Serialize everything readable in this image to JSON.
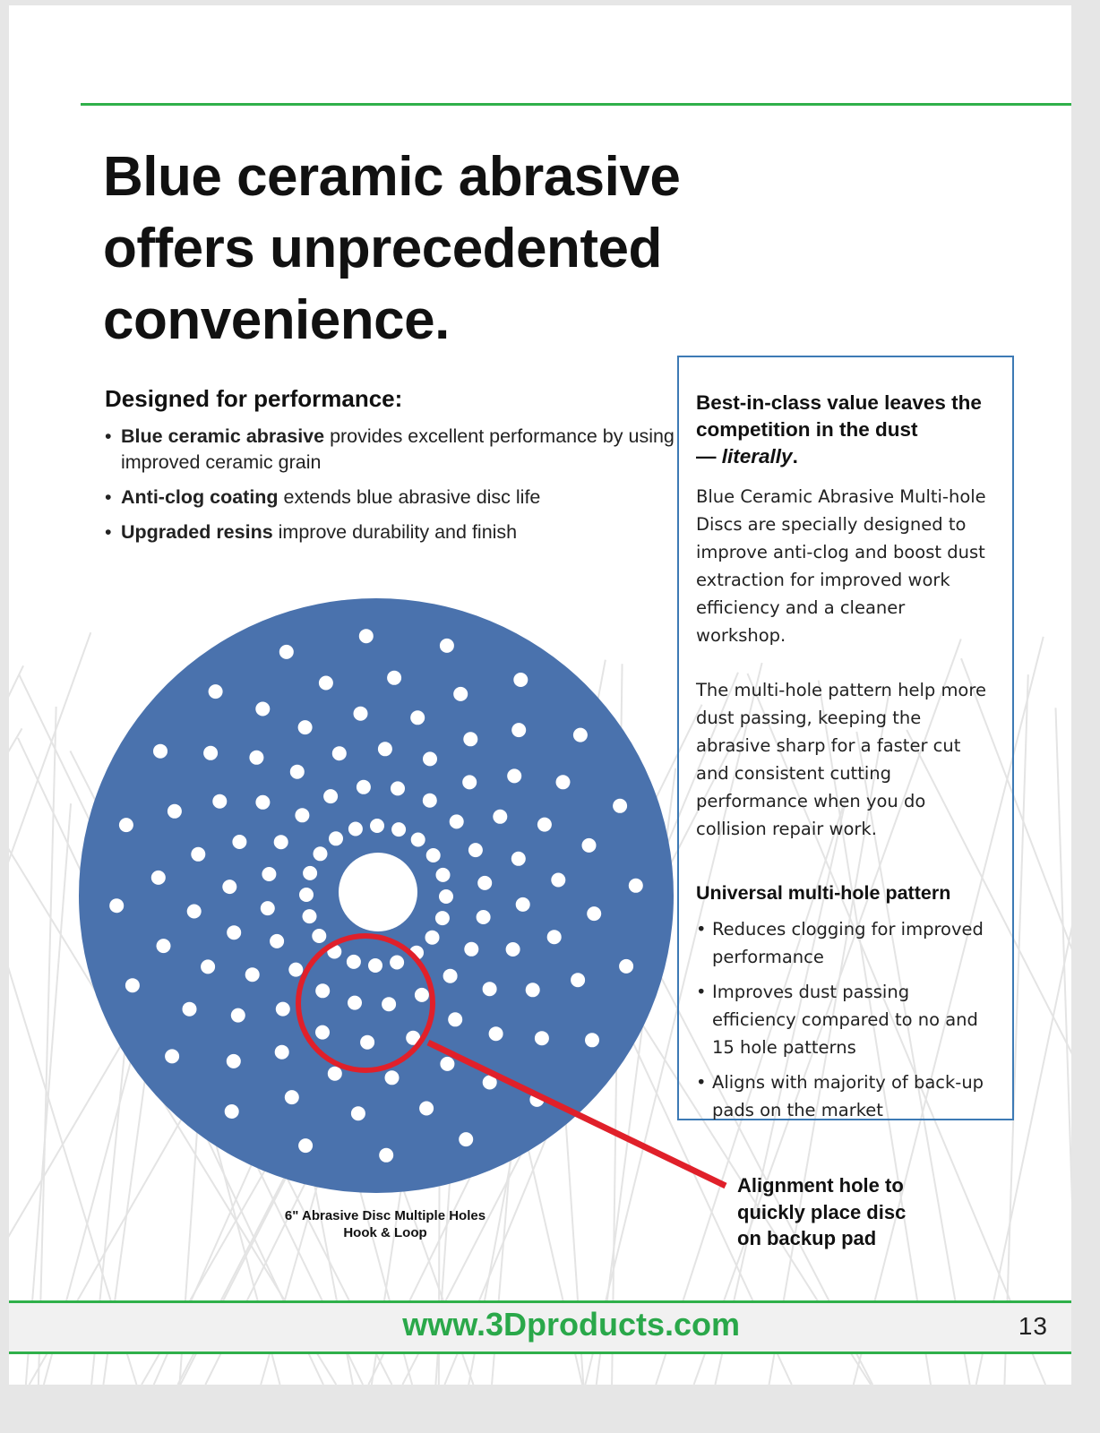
{
  "title": "Blue ceramic abrasive offers unprecedented convenience.",
  "performance": {
    "heading": "Designed for performance:",
    "items": [
      {
        "bold": "Blue ceramic abrasive",
        "text": " provides excellent performance by using improved ceramic grain"
      },
      {
        "bold": "Anti-clog coating",
        "text": " extends blue abrasive disc life"
      },
      {
        "bold": "Upgraded resins",
        "text": " improve durability and finish"
      }
    ]
  },
  "box": {
    "heading": "Best-in-class value leaves the competition in the dust",
    "heading_dash": "— ",
    "heading_italic": "literally",
    "heading_end": ".",
    "para1": "Blue Ceramic Abrasive Multi-hole Discs are specially designed to improve anti-clog and boost dust extraction for improved work efficiency and a cleaner workshop.",
    "para2": "The multi-hole pattern help more dust passing, keeping the abrasive sharp for a faster cut and consistent cutting performance when you do collision repair work.",
    "subheading": "Universal multi-hole pattern",
    "items": [
      "Reduces clogging for improved performance",
      "Improves dust passing efficiency compared to no and 15 hole patterns",
      "Aligns with majority of back-up pads on the market"
    ]
  },
  "disc": {
    "caption_line1": "6\" Abrasive Disc Multiple  Holes",
    "caption_line2": "Hook & Loop",
    "callout": [
      "Alignment hole to",
      "quickly place disc",
      "on backup pad"
    ],
    "disc_color": "#4a72ad",
    "highlight_color": "#e0202a"
  },
  "footer": {
    "url": "www.3Dproducts.com",
    "page_number": "13",
    "accent_color": "#2fb04a"
  }
}
